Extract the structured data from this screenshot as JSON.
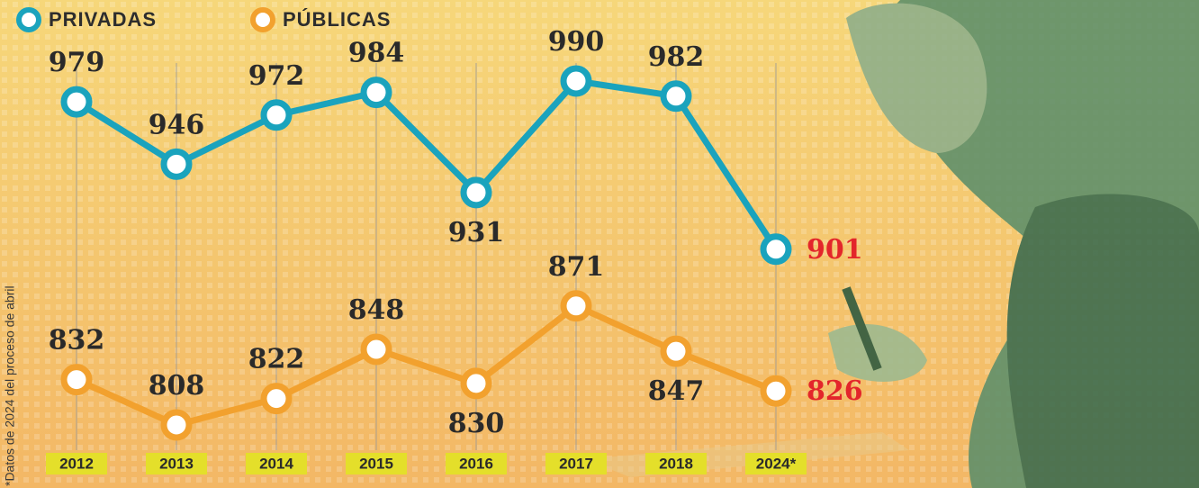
{
  "chart_data": {
    "type": "line",
    "categories": [
      "2012",
      "2013",
      "2014",
      "2015",
      "2016",
      "2017",
      "2018",
      "2024*"
    ],
    "series": [
      {
        "name": "PRIVADAS",
        "color": "#1aa3bd",
        "values": [
          979,
          946,
          972,
          984,
          931,
          990,
          982,
          901
        ]
      },
      {
        "name": "PÚBLICAS",
        "color": "#f2a12e",
        "values": [
          832,
          808,
          822,
          848,
          830,
          871,
          847,
          826
        ]
      }
    ],
    "note": "*Datos de 2024 del proceso de abril",
    "grid": true
  }
}
